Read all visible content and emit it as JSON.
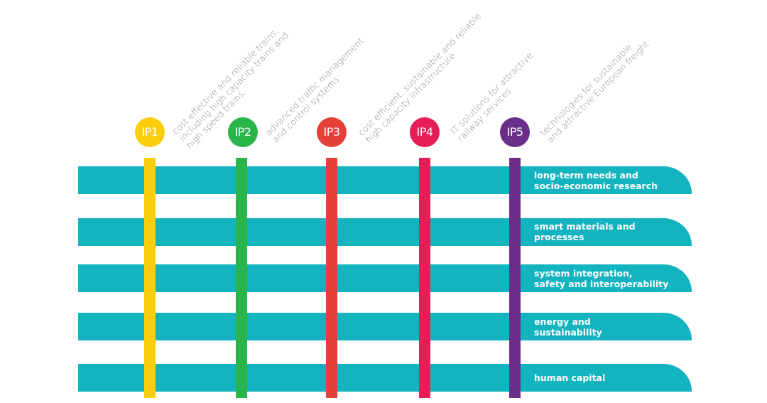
{
  "colors": {
    "band": "#13b3bf",
    "ip1": "#fbcd0a",
    "ip2": "#2ab54a",
    "ip3": "#e5403a",
    "ip4": "#e61e57",
    "ip5": "#6a2e8a",
    "description_text": "#8a8a8a"
  },
  "programmes": [
    {
      "label": "IP1",
      "description": [
        "cost effective and reliable trains,",
        "including high capacity trains and",
        "high speed trains."
      ]
    },
    {
      "label": "IP2",
      "description": [
        "advanced traffic management",
        "and control systems"
      ]
    },
    {
      "label": "IP3",
      "description": [
        "cost efficient, sustainable and reliable",
        "high capacity infrastructure"
      ]
    },
    {
      "label": "IP4",
      "description": [
        "IT solutions for attractive",
        "railway services"
      ]
    },
    {
      "label": "IP5",
      "description": [
        "technologies for sustainable",
        "and attractive European freight"
      ]
    }
  ],
  "themes": [
    {
      "label": "long-term needs and\nsocio-economic research"
    },
    {
      "label": "smart materials and\nprocesses"
    },
    {
      "label": "system integration,\nsafety and interoperability"
    },
    {
      "label": "energy and\nsustainability"
    },
    {
      "label": "human capital"
    }
  ]
}
